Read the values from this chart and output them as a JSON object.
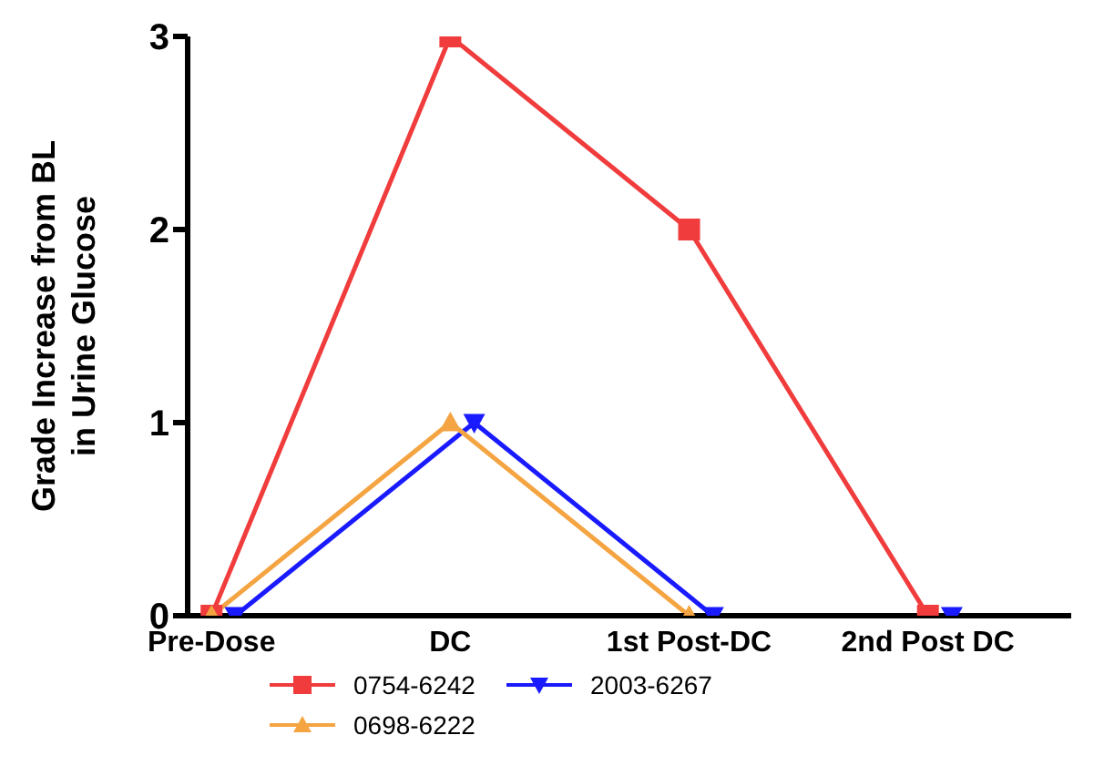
{
  "chart_data": {
    "type": "line",
    "ylabel": "Grade Increase from BL in Urine Glucose",
    "categories": [
      "Pre-Dose",
      "DC",
      "1st Post-DC",
      "2nd Post DC"
    ],
    "ylim": [
      0,
      3
    ],
    "yticks": [
      0,
      1,
      2,
      3
    ],
    "grid": false,
    "legend": "bottom",
    "series": [
      {
        "name": "0754-6242",
        "color": "#f03c3c",
        "marker": "square",
        "values": [
          0,
          3,
          2,
          0
        ]
      },
      {
        "name": "0698-6222",
        "color": "#f5a442",
        "marker": "triangle",
        "values": [
          0,
          1,
          0,
          null
        ]
      },
      {
        "name": "2003-6267",
        "color": "#1a1aff",
        "marker": "triangle-down",
        "values": [
          0,
          1,
          0,
          0
        ]
      }
    ]
  }
}
